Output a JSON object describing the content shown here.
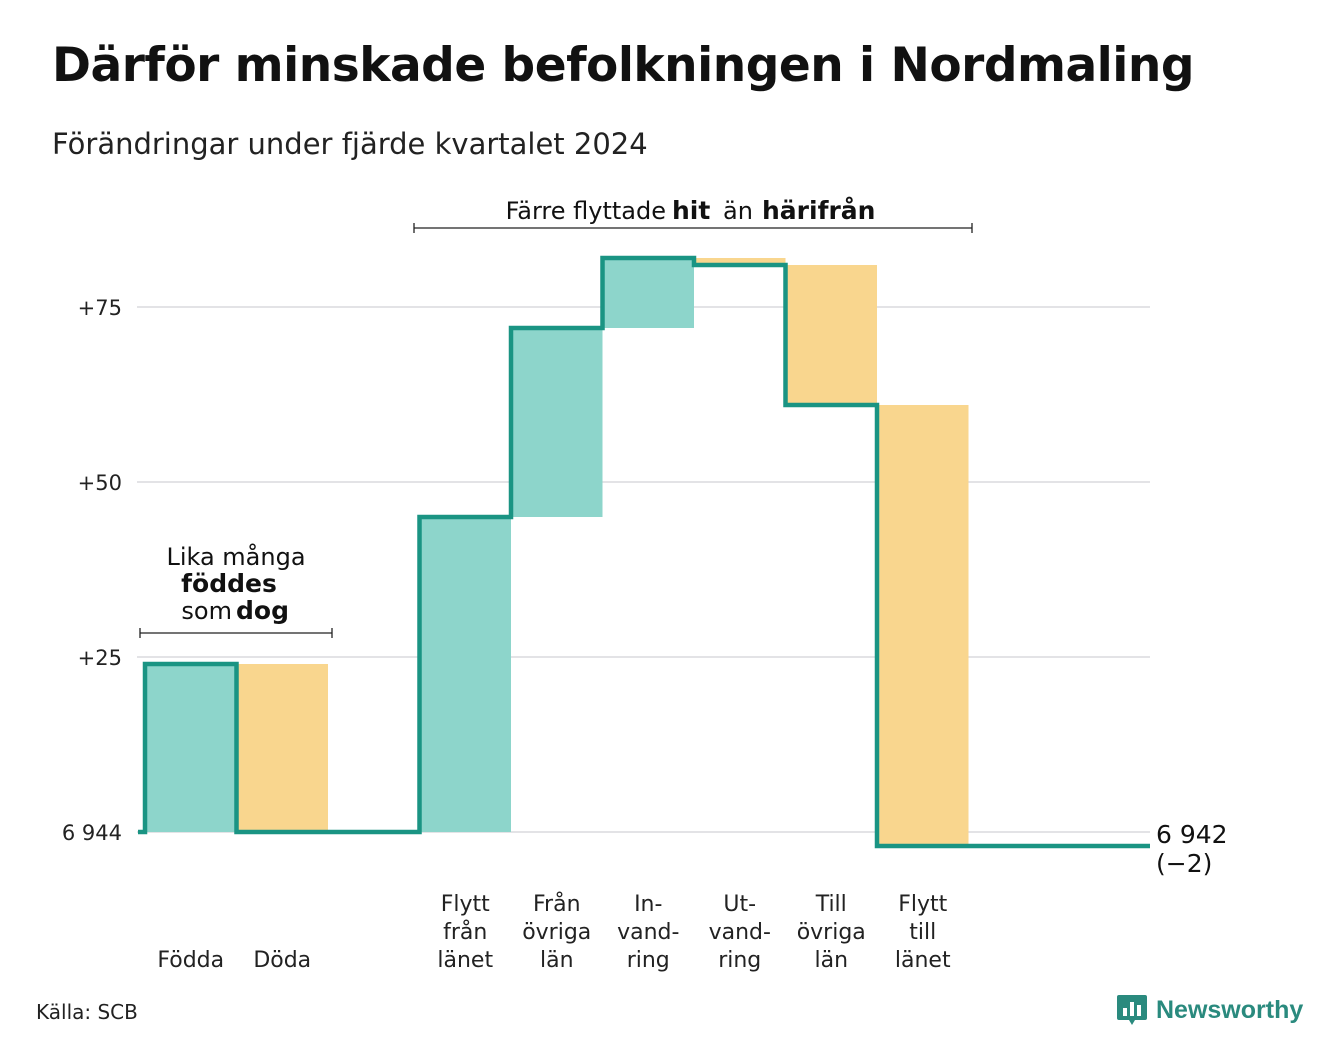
{
  "title": "Därför minskade befolkningen i Nordmaling",
  "subtitle": "Förändringar under fjärde kvartalet 2024",
  "source": "Källa: SCB",
  "brand": {
    "name": "Newsworthy",
    "icon": "bar-chart-speech-icon"
  },
  "colors": {
    "in_fill": "#8dd5cb",
    "out_fill": "#f9d68e",
    "step_line": "#1a9483",
    "in_text": "#1a9483",
    "out_text": "#f0a020",
    "grid": "#e3e3e6"
  },
  "annotations": {
    "natural": {
      "line1": "Lika många",
      "word_in": "föddes",
      "pre_out": "som",
      "word_out": "dog"
    },
    "migration": {
      "pre": "Färre flyttade",
      "word_in": "hit",
      "mid": "än",
      "word_out": "härifrån"
    }
  },
  "chart_data": {
    "type": "waterfall",
    "title": "Därför minskade befolkningen i Nordmaling",
    "subtitle": "Förändringar under fjärde kvartalet 2024",
    "start_value": 6944,
    "start_label": "6 944",
    "end_value": 6942,
    "end_label": "6 942",
    "change_label": "(−2)",
    "yticks": [
      {
        "value": 0,
        "label": "6 944"
      },
      {
        "value": 25,
        "label": "+25"
      },
      {
        "value": 50,
        "label": "+50"
      },
      {
        "value": 75,
        "label": "+75"
      }
    ],
    "ylim": [
      -3,
      87
    ],
    "grid": true,
    "steps": [
      {
        "label": [
          "Födda"
        ],
        "kind": "in",
        "value": 24
      },
      {
        "label": [
          "Döda"
        ],
        "kind": "out",
        "value": -24
      },
      {
        "label": [],
        "kind": "gap",
        "value": 0
      },
      {
        "label": [
          "Flytt",
          "från",
          "länet"
        ],
        "kind": "in",
        "value": 45
      },
      {
        "label": [
          "Från",
          "övriga",
          "län"
        ],
        "kind": "in",
        "value": 27
      },
      {
        "label": [
          "In-",
          "vand-",
          "ring"
        ],
        "kind": "in",
        "value": 10
      },
      {
        "label": [
          "Ut-",
          "vand-",
          "ring"
        ],
        "kind": "out",
        "value": -1
      },
      {
        "label": [
          "Till",
          "övriga",
          "län"
        ],
        "kind": "out",
        "value": -20
      },
      {
        "label": [
          "Flytt",
          "till",
          "länet"
        ],
        "kind": "out",
        "value": -63
      }
    ]
  }
}
